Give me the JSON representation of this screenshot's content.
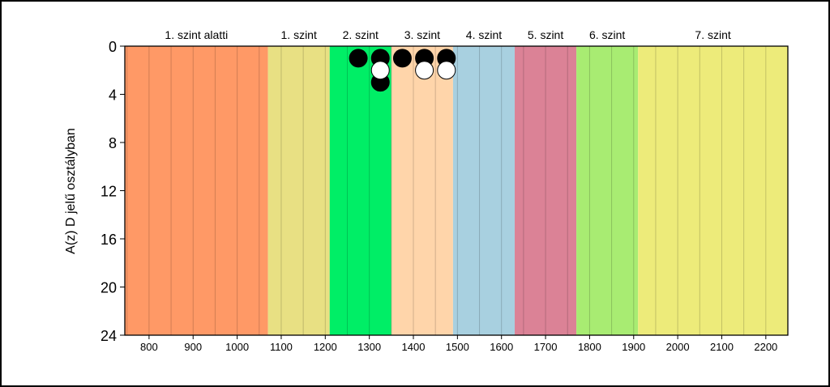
{
  "chart_data": {
    "type": "scatter",
    "title": "",
    "xlabel": "",
    "ylabel": "A(z) D jelű osztályban",
    "xlim": [
      745,
      2250
    ],
    "ylim": [
      24,
      0
    ],
    "x_ticks": [
      800,
      900,
      1000,
      1100,
      1200,
      1300,
      1400,
      1500,
      1600,
      1700,
      1800,
      1900,
      2000,
      2100,
      2200
    ],
    "y_ticks": [
      0,
      4,
      8,
      12,
      16,
      20,
      24
    ],
    "bands": [
      {
        "label": "1. szint alatti",
        "from": 745,
        "to": 1070,
        "color": "#FF9966"
      },
      {
        "label": "1. szint",
        "from": 1070,
        "to": 1210,
        "color": "#E8E083"
      },
      {
        "label": "2. szint",
        "from": 1210,
        "to": 1350,
        "color": "#00EE66"
      },
      {
        "label": "3. szint",
        "from": 1350,
        "to": 1490,
        "color": "#FFD5AA"
      },
      {
        "label": "4. szint",
        "from": 1490,
        "to": 1630,
        "color": "#A8D0E0"
      },
      {
        "label": "5. szint",
        "from": 1630,
        "to": 1770,
        "color": "#DB8296"
      },
      {
        "label": "6. szint",
        "from": 1770,
        "to": 1910,
        "color": "#A8EC72"
      },
      {
        "label": "7. szint",
        "from": 1910,
        "to": 2250,
        "color": "#EDEB7A"
      }
    ],
    "series": [
      {
        "marker_color": "#000000",
        "x": [
          1275,
          1325,
          1325,
          1375,
          1425,
          1475
        ],
        "y": [
          1,
          1,
          3,
          1,
          1,
          1
        ]
      },
      {
        "marker_color": "#FFFFFF",
        "x": [
          1325,
          1425,
          1475
        ],
        "y": [
          2,
          2,
          2
        ]
      }
    ],
    "grid": {
      "x": true,
      "y": false
    }
  }
}
